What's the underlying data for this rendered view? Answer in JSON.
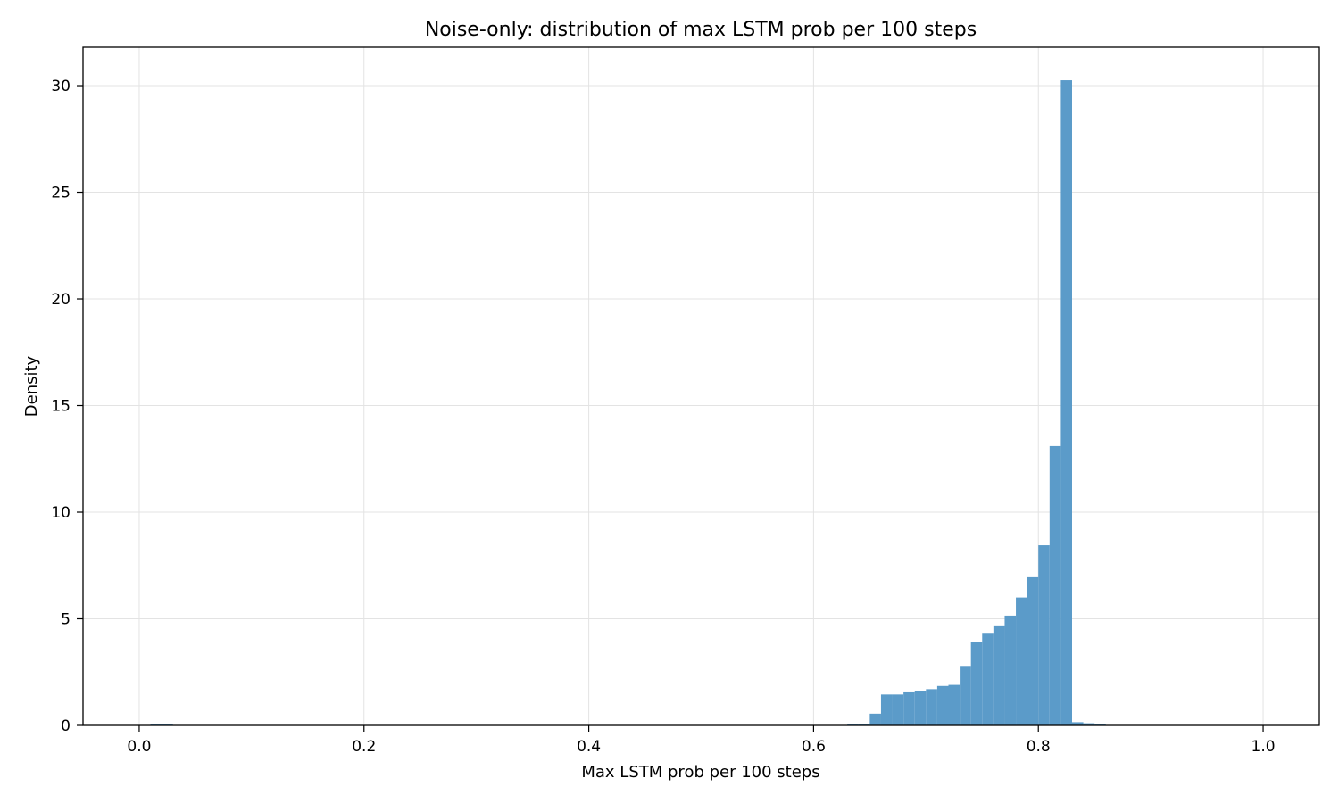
{
  "chart_data": {
    "type": "bar",
    "title": "Noise-only: distribution of max LSTM prob per 100 steps",
    "xlabel": "Max LSTM prob per 100 steps",
    "ylabel": "Density",
    "xlim": [
      -0.05,
      1.05
    ],
    "ylim": [
      0,
      31.8
    ],
    "xticks": [
      0.0,
      0.2,
      0.4,
      0.6,
      0.8,
      1.0
    ],
    "xtick_labels": [
      "0.0",
      "0.2",
      "0.4",
      "0.6",
      "0.8",
      "1.0"
    ],
    "yticks": [
      0,
      5,
      10,
      15,
      20,
      25,
      30
    ],
    "ytick_labels": [
      "0",
      "5",
      "10",
      "15",
      "20",
      "25",
      "30"
    ],
    "grid": true,
    "bar_color": "#5b9bc9",
    "bin_width": 0.01,
    "bins": [
      {
        "x0": 0.01,
        "density": 0.05
      },
      {
        "x0": 0.02,
        "density": 0.05
      },
      {
        "x0": 0.63,
        "density": 0.05
      },
      {
        "x0": 0.64,
        "density": 0.07
      },
      {
        "x0": 0.65,
        "density": 0.55
      },
      {
        "x0": 0.66,
        "density": 1.45
      },
      {
        "x0": 0.67,
        "density": 1.45
      },
      {
        "x0": 0.68,
        "density": 1.55
      },
      {
        "x0": 0.69,
        "density": 1.6
      },
      {
        "x0": 0.7,
        "density": 1.7
      },
      {
        "x0": 0.71,
        "density": 1.85
      },
      {
        "x0": 0.72,
        "density": 1.9
      },
      {
        "x0": 0.73,
        "density": 2.75
      },
      {
        "x0": 0.74,
        "density": 3.9
      },
      {
        "x0": 0.75,
        "density": 4.3
      },
      {
        "x0": 0.76,
        "density": 4.65
      },
      {
        "x0": 0.77,
        "density": 5.15
      },
      {
        "x0": 0.78,
        "density": 6.0
      },
      {
        "x0": 0.79,
        "density": 6.95
      },
      {
        "x0": 0.8,
        "density": 8.45
      },
      {
        "x0": 0.81,
        "density": 13.1
      },
      {
        "x0": 0.82,
        "density": 30.25
      },
      {
        "x0": 0.83,
        "density": 0.15
      },
      {
        "x0": 0.84,
        "density": 0.1
      },
      {
        "x0": 0.85,
        "density": 0.05
      }
    ]
  }
}
